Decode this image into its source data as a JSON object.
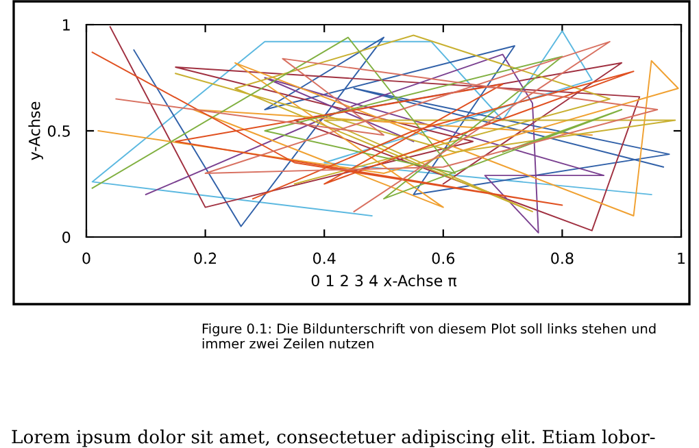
{
  "chart_data": {
    "type": "line",
    "xlabel": "0 1 2 3 4 x-Achse π",
    "ylabel": "y-Achse",
    "annotations": [
      "Figure 0.1: Die Bildunterschrift von diesem Plot soll links stehen und immer zwei Zeilen nutzen",
      "Lorem ipsum dolor sit amet, consectetuer adipiscing elit. Etiam lobor-"
    ],
    "series": [
      {
        "color": "#5bb8e0",
        "x": [
          0.48,
          0.01,
          0.3,
          0.58,
          0.7,
          0.8,
          0.85,
          0.4,
          0.95
        ],
        "values": [
          0.1,
          0.26,
          0.92,
          0.92,
          0.55,
          0.97,
          0.74,
          0.35,
          0.2
        ]
      },
      {
        "color": "#3060a8",
        "x": [
          0.08,
          0.26,
          0.5,
          0.3,
          0.72,
          0.55,
          0.98,
          0.45,
          0.97
        ],
        "values": [
          0.88,
          0.05,
          0.94,
          0.6,
          0.9,
          0.2,
          0.39,
          0.7,
          0.33
        ]
      },
      {
        "color": "#a03040",
        "x": [
          0.04,
          0.2,
          0.65,
          0.15,
          0.93,
          0.85,
          0.35,
          0.9,
          0.6
        ],
        "values": [
          0.99,
          0.14,
          0.45,
          0.8,
          0.66,
          0.03,
          0.55,
          0.82,
          0.25
        ]
      },
      {
        "color": "#7a4090",
        "x": [
          0.1,
          0.45,
          0.7,
          0.75,
          0.76,
          0.67,
          0.87,
          0.3,
          0.55
        ],
        "values": [
          0.2,
          0.62,
          0.86,
          0.63,
          0.02,
          0.29,
          0.29,
          0.75,
          0.45
        ]
      },
      {
        "color": "#f0a030",
        "x": [
          0.02,
          0.5,
          0.995,
          0.95,
          0.92,
          0.25,
          0.6,
          0.18,
          0.85
        ],
        "values": [
          0.5,
          0.3,
          0.7,
          0.83,
          0.1,
          0.82,
          0.14,
          0.6,
          0.48
        ]
      },
      {
        "color": "#c8b030",
        "x": [
          0.15,
          0.62,
          0.99,
          0.4,
          0.75,
          0.25,
          0.55,
          0.88,
          0.35
        ],
        "values": [
          0.77,
          0.4,
          0.55,
          0.55,
          0.12,
          0.7,
          0.95,
          0.65,
          0.25
        ]
      },
      {
        "color": "#80b040",
        "x": [
          0.01,
          0.44,
          0.62,
          0.3,
          0.8,
          0.5,
          0.9,
          0.7
        ],
        "values": [
          0.23,
          0.94,
          0.3,
          0.5,
          0.85,
          0.18,
          0.6,
          0.4
        ]
      },
      {
        "color": "#e05020",
        "x": [
          0.01,
          0.35,
          0.8,
          0.15,
          0.7,
          0.4,
          0.92,
          0.55,
          0.28
        ],
        "values": [
          0.87,
          0.35,
          0.15,
          0.45,
          0.72,
          0.25,
          0.78,
          0.5,
          0.18
        ]
      },
      {
        "color": "#d87060",
        "x": [
          0.05,
          0.5,
          0.33,
          0.96,
          0.6,
          0.2,
          0.88,
          0.45
        ],
        "values": [
          0.65,
          0.48,
          0.84,
          0.6,
          0.33,
          0.3,
          0.92,
          0.12
        ]
      }
    ],
    "xlim": [
      0,
      1
    ],
    "ylim": [
      0,
      1
    ],
    "xticks": [
      0,
      0.2,
      0.4,
      0.6,
      0.8,
      1
    ],
    "yticks": [
      0,
      0.5,
      1
    ],
    "grid": false,
    "legend": false,
    "marker": "none",
    "line_style": "solid"
  }
}
